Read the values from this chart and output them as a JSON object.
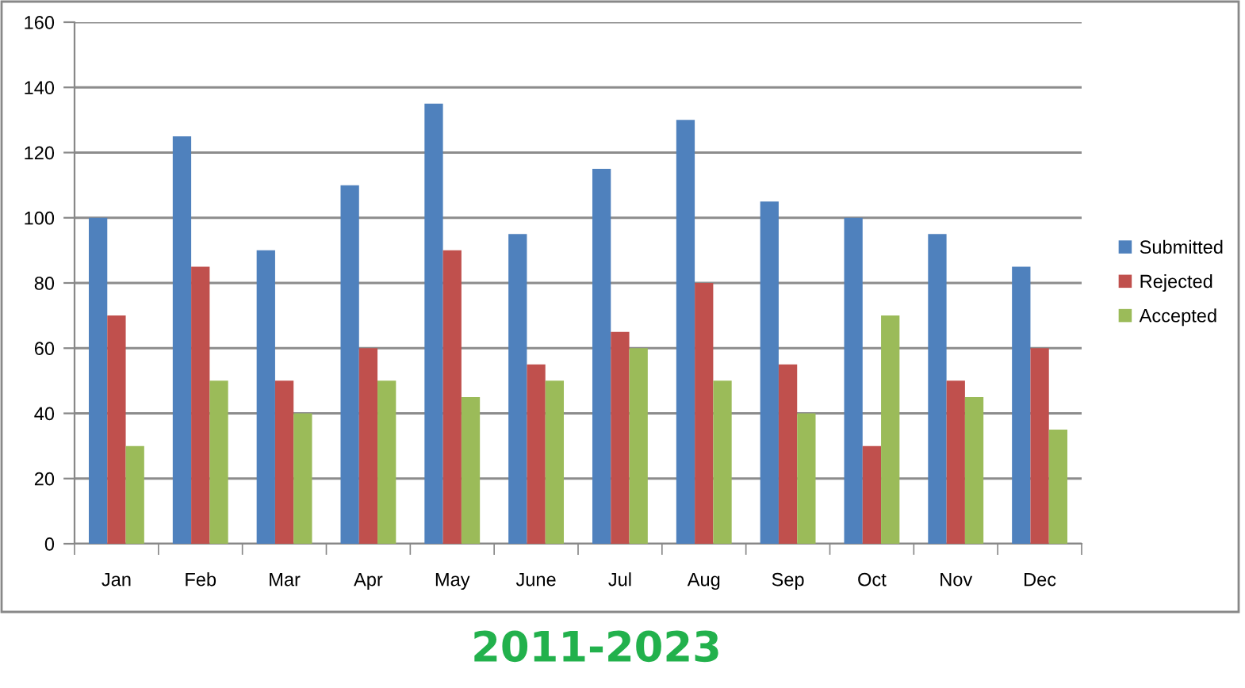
{
  "chart_data": {
    "type": "bar",
    "title": "2011-2023",
    "categories": [
      "Jan",
      "Feb",
      "Mar",
      "Apr",
      "May",
      "June",
      "Jul",
      "Aug",
      "Sep",
      "Oct",
      "Nov",
      "Dec"
    ],
    "series": [
      {
        "name": "Submitted",
        "color": "#4f81bd",
        "values": [
          100,
          125,
          90,
          110,
          135,
          95,
          115,
          130,
          105,
          100,
          95,
          85
        ]
      },
      {
        "name": "Rejected",
        "color": "#c0504d",
        "values": [
          70,
          85,
          50,
          60,
          90,
          55,
          65,
          80,
          55,
          30,
          50,
          60
        ]
      },
      {
        "name": "Accepted",
        "color": "#9bbb59",
        "values": [
          30,
          50,
          40,
          50,
          45,
          50,
          60,
          50,
          40,
          70,
          45,
          35
        ]
      }
    ],
    "ylim": [
      0,
      160
    ],
    "yticks": [
      0,
      20,
      40,
      60,
      80,
      100,
      120,
      140,
      160
    ],
    "grid": "y",
    "legend": "right"
  }
}
